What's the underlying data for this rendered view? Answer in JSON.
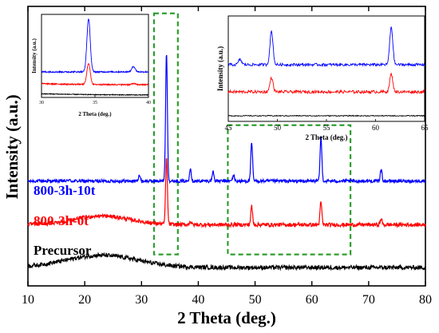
{
  "chart_data": {
    "type": "line",
    "xlabel": "2 Theta (deg.)",
    "ylabel": "Intensity (a.u.)",
    "xlim": [
      10,
      80
    ],
    "xticks": [
      10,
      20,
      30,
      40,
      50,
      60,
      70,
      80
    ],
    "series": [
      {
        "name": "800-3h-10t",
        "color": "#0000ff",
        "baseline": 6.0,
        "noise": 0.09,
        "humps": [],
        "peaks": [
          {
            "x": 17.2,
            "h": 0.08
          },
          {
            "x": 29.6,
            "h": 0.35
          },
          {
            "x": 34.4,
            "h": 7.4
          },
          {
            "x": 38.6,
            "h": 0.75
          },
          {
            "x": 42.6,
            "h": 0.55
          },
          {
            "x": 46.2,
            "h": 0.35
          },
          {
            "x": 49.4,
            "h": 2.2
          },
          {
            "x": 61.6,
            "h": 2.5
          },
          {
            "x": 72.2,
            "h": 0.65
          }
        ]
      },
      {
        "name": "800-3h-0t",
        "color": "#ff0000",
        "baseline": 3.5,
        "noise": 0.11,
        "humps": [
          {
            "x": 23,
            "h": 0.5,
            "w": 7
          }
        ],
        "peaks": [
          {
            "x": 34.4,
            "h": 3.8
          },
          {
            "x": 38.6,
            "h": 0.2
          },
          {
            "x": 49.4,
            "h": 1.05
          },
          {
            "x": 61.6,
            "h": 1.3
          },
          {
            "x": 72.2,
            "h": 0.35
          }
        ]
      },
      {
        "name": "Precursor",
        "color": "#000000",
        "baseline": 1.05,
        "noise": 0.12,
        "humps": [
          {
            "x": 23,
            "h": 0.7,
            "w": 9
          }
        ],
        "peaks": []
      }
    ],
    "highlight_boxes": [
      {
        "x": [
          32.2,
          36.4
        ],
        "y": [
          1.8,
          15.6
        ],
        "color": "#2e9e2e"
      },
      {
        "x": [
          45.2,
          66.8
        ],
        "y": [
          1.8,
          9.2
        ],
        "color": "#2e9e2e"
      }
    ],
    "insets": [
      {
        "xlabel": "2 Theta (deg.)",
        "ylabel": "Intensity (a.u.)",
        "xlim": [
          30,
          40
        ],
        "xticks": [
          30,
          35,
          40
        ],
        "xtick_labels": [
          "30",
          "35",
          "40"
        ]
      },
      {
        "xlabel": "2 Theta (deg.)",
        "ylabel": "Intensity (a.u.)",
        "xlim": [
          45,
          65
        ],
        "xticks": [
          45,
          50,
          55,
          60,
          65
        ],
        "xtick_labels": [
          "45",
          "50",
          "55",
          "60",
          "65"
        ]
      }
    ]
  }
}
